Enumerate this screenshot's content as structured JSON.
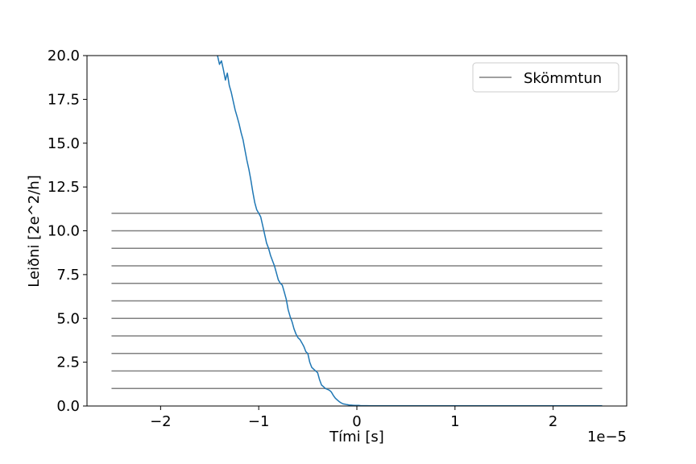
{
  "chart_data": {
    "type": "line",
    "xlabel": "Tími [s]",
    "ylabel": "Leiðni [2e^2/h]",
    "x_offset_label": "1e−5",
    "xlim": [
      -2.75e-05,
      2.75e-05
    ],
    "ylim": [
      0,
      20
    ],
    "x_ticks": [
      {
        "value": -2e-05,
        "label": "−2"
      },
      {
        "value": -1e-05,
        "label": "−1"
      },
      {
        "value": 0,
        "label": "0"
      },
      {
        "value": 1e-05,
        "label": "1"
      },
      {
        "value": 2e-05,
        "label": "2"
      }
    ],
    "y_ticks": [
      {
        "value": 0,
        "label": "0.0"
      },
      {
        "value": 2.5,
        "label": "2.5"
      },
      {
        "value": 5,
        "label": "5.0"
      },
      {
        "value": 7.5,
        "label": "7.5"
      },
      {
        "value": 10,
        "label": "10.0"
      },
      {
        "value": 12.5,
        "label": "12.5"
      },
      {
        "value": 15,
        "label": "15.0"
      },
      {
        "value": 17.5,
        "label": "17.5"
      },
      {
        "value": 20,
        "label": "20.0"
      }
    ],
    "grid": false,
    "legend_position": "top-right",
    "series": [
      {
        "kind": "line",
        "color": "#1f77b4",
        "x": [
          -1.42e-05,
          -1.4e-05,
          -1.38e-05,
          -1.36e-05,
          -1.34e-05,
          -1.32e-05,
          -1.3e-05,
          -1.28e-05,
          -1.26e-05,
          -1.24e-05,
          -1.22e-05,
          -1.2e-05,
          -1.18e-05,
          -1.16e-05,
          -1.14e-05,
          -1.12e-05,
          -1.1e-05,
          -1.08e-05,
          -1.06e-05,
          -1.04e-05,
          -1.02e-05,
          -1e-05,
          -9.8e-06,
          -9.6e-06,
          -9.4e-06,
          -9.2e-06,
          -9e-06,
          -8.8e-06,
          -8.6e-06,
          -8.4e-06,
          -8.2e-06,
          -8e-06,
          -7.8e-06,
          -7.6e-06,
          -7.4e-06,
          -7.2e-06,
          -7e-06,
          -6.8e-06,
          -6.6e-06,
          -6.4e-06,
          -6.2e-06,
          -6e-06,
          -5.8e-06,
          -5.6e-06,
          -5.4e-06,
          -5.2e-06,
          -5e-06,
          -4.8e-06,
          -4.6e-06,
          -4.4e-06,
          -4.2e-06,
          -4e-06,
          -3.8e-06,
          -3.6e-06,
          -3.4e-06,
          -3.2e-06,
          -3e-06,
          -2.8e-06,
          -2.6e-06,
          -2.4e-06,
          -2.2e-06,
          -2e-06,
          -1.8e-06,
          -1.6e-06,
          -1.4e-06,
          -1.2e-06,
          -1e-06,
          -8e-07,
          -6e-07,
          -4e-07,
          -2e-07,
          0,
          2e-07,
          4e-07,
          6e-07,
          8e-07,
          1e-06,
          1.5e-06,
          2e-06,
          3e-06,
          4e-06,
          5e-06,
          6e-06,
          7e-06,
          8e-06,
          9e-06,
          1e-05,
          1.2e-05,
          1.4e-05,
          1.6e-05,
          1.8e-05,
          2e-05,
          2.2e-05,
          2.5e-05
        ],
        "y": [
          20.0,
          19.5,
          19.7,
          19.2,
          18.6,
          19.0,
          18.3,
          17.9,
          17.4,
          16.9,
          16.5,
          16.1,
          15.6,
          15.2,
          14.6,
          14.0,
          13.5,
          12.9,
          12.2,
          11.6,
          11.2,
          11.0,
          10.8,
          10.3,
          9.8,
          9.3,
          9.0,
          8.6,
          8.3,
          8.0,
          7.6,
          7.2,
          7.0,
          6.9,
          6.5,
          6.1,
          5.5,
          5.1,
          4.8,
          4.4,
          4.1,
          3.9,
          3.8,
          3.6,
          3.4,
          3.1,
          3.0,
          2.5,
          2.2,
          2.1,
          2.0,
          1.9,
          1.5,
          1.2,
          1.1,
          1.0,
          0.95,
          0.9,
          0.8,
          0.6,
          0.45,
          0.35,
          0.25,
          0.18,
          0.12,
          0.1,
          0.08,
          0.06,
          0.05,
          0.04,
          0.03,
          0.03,
          0.03,
          0.02,
          0.02,
          0.02,
          0.02,
          0.01,
          0.01,
          0.01,
          0.01,
          0.01,
          0.01,
          0.01,
          0.01,
          0.01,
          0.01,
          0.01,
          0.01,
          0.01,
          0.01,
          0.01,
          0.01,
          0.01
        ]
      },
      {
        "kind": "hlines",
        "name": "Skömmtun",
        "color": "#808080",
        "xmin": -2.5e-05,
        "xmax": 2.5e-05,
        "levels": [
          1,
          2,
          3,
          4,
          5,
          6,
          7,
          8,
          9,
          10,
          11
        ]
      }
    ]
  }
}
